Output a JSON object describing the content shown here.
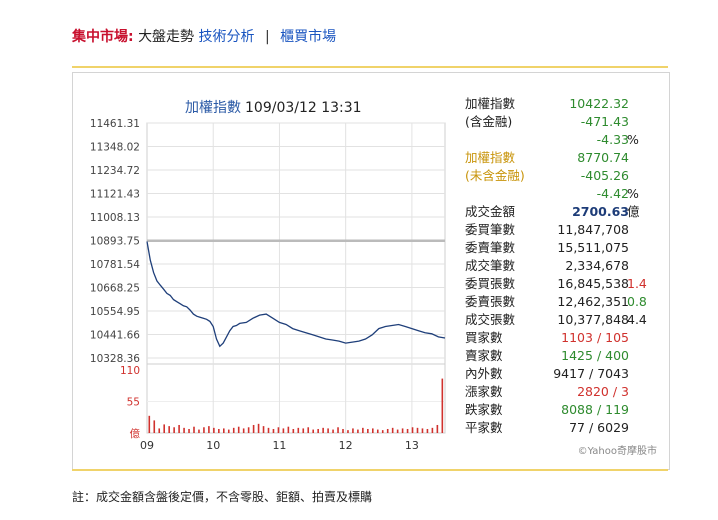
{
  "nav": {
    "market_label": "集中市場:",
    "current_label": "大盤走勢",
    "technical_link": "技術分析",
    "separator": "|",
    "otc_link": "櫃買市場"
  },
  "chart_header": {
    "title": "加權指數",
    "timestamp": "109/03/12 13:31"
  },
  "info_panel": {
    "rows": [
      {
        "label": "加權指數",
        "value": "10422.32",
        "value_color": "green"
      },
      {
        "label": "(含金融)",
        "value": "-471.43",
        "value_color": "green"
      },
      {
        "label": "",
        "value": "-4.33",
        "value_color": "green",
        "extra": "%"
      },
      {
        "label": "加權指數",
        "value": "8770.74",
        "value_color": "green",
        "label_color": "gold"
      },
      {
        "label": "(未含金融)",
        "value": "-405.26",
        "value_color": "green",
        "label_color": "gold"
      },
      {
        "label": "",
        "value": "-4.42",
        "value_color": "green",
        "extra": "%"
      },
      {
        "label": "成交金額",
        "value": "2700.63",
        "value_color": "navy",
        "extra": "億"
      },
      {
        "label": "委買筆數",
        "value": "11,847,708"
      },
      {
        "label": "委賣筆數",
        "value": "15,511,075"
      },
      {
        "label": "成交筆數",
        "value": "2,334,678"
      },
      {
        "label": "委買張數",
        "value": "16,845,538",
        "extra": "1.4",
        "extra_color": "red"
      },
      {
        "label": "委賣張數",
        "value": "12,462,351",
        "extra": "0.8",
        "extra_color": "green"
      },
      {
        "label": "成交張數",
        "value": "10,377,848",
        "extra": "4.4"
      },
      {
        "label": "買家數",
        "value": "1103 / 105",
        "value_color": "red"
      },
      {
        "label": "賣家數",
        "value": "1425 / 400",
        "value_color": "green"
      },
      {
        "label": "內外數",
        "value": "9417 / 7043"
      },
      {
        "label": "漲家數",
        "value": "2820 / 3",
        "value_color": "red"
      },
      {
        "label": "跌家數",
        "value": "8088 / 119",
        "value_color": "green"
      },
      {
        "label": "平家數",
        "value": "77 / 6029"
      }
    ],
    "credit": "©Yahoo奇摩股市"
  },
  "footnote": "註：成交金額含盤後定價，不含零股、鉅額、拍賣及標購",
  "colors": {
    "nav_market": "#c8102e",
    "link": "#1a55c0",
    "gold_rule": "#f0d36a",
    "index_line": "#1f3f7a",
    "reference_line": "#bbbbbb",
    "volume_bar": "#d0312d",
    "up": "#d0312d",
    "down": "#2e8b2e"
  },
  "chart_data": [
    {
      "type": "line",
      "title": "加權指數 109/03/12 13:31",
      "x_unit": "time of day (hour)",
      "x_ticks": [
        "09",
        "10",
        "11",
        "12",
        "13"
      ],
      "x_range": [
        9,
        13.5
      ],
      "y_ticks": [
        "11461.31",
        "11348.02",
        "11234.72",
        "11121.43",
        "11008.13",
        "10893.75",
        "10781.54",
        "10668.25",
        "10554.95",
        "10441.66",
        "10328.36"
      ],
      "ylim": [
        10328.36,
        11461.31
      ],
      "reference_value": 10893.75,
      "grid": true,
      "series": [
        {
          "x": [
            9.0,
            9.05,
            9.1,
            9.15,
            9.2,
            9.25,
            9.3,
            9.35,
            9.4,
            9.45,
            9.5,
            9.55,
            9.6,
            9.65,
            9.7,
            9.75,
            9.8,
            9.85,
            9.9,
            9.95,
            10.0,
            10.05,
            10.1,
            10.15,
            10.2,
            10.25,
            10.3,
            10.35,
            10.4,
            10.5,
            10.6,
            10.7,
            10.8,
            10.9,
            11.0,
            11.1,
            11.2,
            11.3,
            11.4,
            11.5,
            11.6,
            11.7,
            11.8,
            11.9,
            12.0,
            12.1,
            12.2,
            12.3,
            12.4,
            12.5,
            12.6,
            12.7,
            12.8,
            12.9,
            13.0,
            13.1,
            13.2,
            13.3,
            13.4,
            13.5
          ],
          "y": [
            10890,
            10800,
            10740,
            10700,
            10680,
            10660,
            10640,
            10630,
            10610,
            10600,
            10590,
            10580,
            10575,
            10560,
            10540,
            10530,
            10525,
            10520,
            10515,
            10505,
            10480,
            10420,
            10385,
            10400,
            10430,
            10460,
            10480,
            10485,
            10495,
            10500,
            10520,
            10535,
            10540,
            10520,
            10500,
            10490,
            10470,
            10460,
            10450,
            10440,
            10430,
            10420,
            10415,
            10410,
            10400,
            10405,
            10410,
            10420,
            10440,
            10470,
            10480,
            10485,
            10490,
            10480,
            10470,
            10460,
            10450,
            10445,
            10430,
            10425
          ]
        }
      ]
    },
    {
      "type": "bar",
      "title": "",
      "y_unit_label": "億",
      "y_ticks": [
        "110",
        "55",
        "億"
      ],
      "ylim": [
        0,
        110
      ],
      "x_range": [
        9,
        13.5
      ],
      "values": [
        30,
        22,
        8,
        15,
        12,
        10,
        14,
        9,
        7,
        11,
        6,
        10,
        12,
        9,
        7,
        8,
        6,
        9,
        11,
        8,
        10,
        14,
        16,
        12,
        9,
        7,
        10,
        8,
        11,
        7,
        9,
        8,
        10,
        6,
        7,
        9,
        8,
        6,
        10,
        7,
        5,
        8,
        6,
        9,
        7,
        8,
        6,
        5,
        7,
        9,
        6,
        8,
        7,
        10,
        9,
        8,
        7,
        9,
        14,
        95
      ]
    }
  ]
}
